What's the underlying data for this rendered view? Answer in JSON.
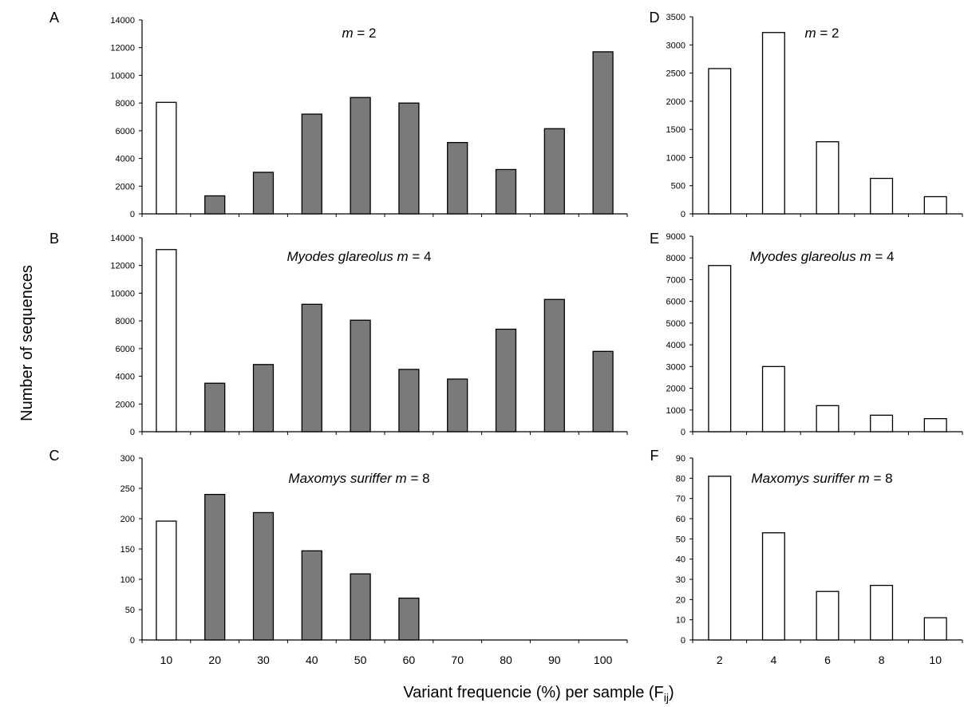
{
  "figure": {
    "ylabel": "Number of sequences",
    "xlabel_main": "Variant frequencie (%) per sample (F",
    "xlabel_sub": "ij",
    "xlabel_end": ")"
  },
  "colors": {
    "filled_bar": "#7a7a7a",
    "open_bar": "#ffffff",
    "stroke": "#000000"
  },
  "chart_data": [
    {
      "panel": "A",
      "type": "bar",
      "title_italic": "m",
      "title_rest": " = 2",
      "categories": [
        "10",
        "20",
        "30",
        "40",
        "50",
        "60",
        "70",
        "80",
        "90",
        "100"
      ],
      "values": [
        8050,
        1300,
        3000,
        7200,
        8400,
        8000,
        5150,
        3200,
        6150,
        11700
      ],
      "filled": [
        false,
        true,
        true,
        true,
        true,
        true,
        true,
        true,
        true,
        true
      ],
      "ylim": [
        0,
        14000
      ],
      "yticks": [
        0,
        2000,
        4000,
        6000,
        8000,
        10000,
        12000,
        14000
      ],
      "show_x_labels": false
    },
    {
      "panel": "B",
      "type": "bar",
      "title_italic": "Myodes glareolus m",
      "title_rest": " = 4",
      "categories": [
        "10",
        "20",
        "30",
        "40",
        "50",
        "60",
        "70",
        "80",
        "90",
        "100"
      ],
      "values": [
        13150,
        3500,
        4850,
        9200,
        8050,
        4500,
        3800,
        7400,
        9550,
        5800
      ],
      "filled": [
        false,
        true,
        true,
        true,
        true,
        true,
        true,
        true,
        true,
        true
      ],
      "ylim": [
        0,
        14000
      ],
      "yticks": [
        0,
        2000,
        4000,
        6000,
        8000,
        10000,
        12000,
        14000
      ],
      "show_x_labels": false
    },
    {
      "panel": "C",
      "type": "bar",
      "title_italic": "Maxomys suriffer m",
      "title_rest": " = 8",
      "categories": [
        "10",
        "20",
        "30",
        "40",
        "50",
        "60",
        "70",
        "80",
        "90",
        "100"
      ],
      "values": [
        196,
        240,
        210,
        147,
        109,
        69,
        0,
        0,
        0,
        0
      ],
      "filled": [
        false,
        true,
        true,
        true,
        true,
        true,
        true,
        true,
        true,
        true
      ],
      "ylim": [
        0,
        300
      ],
      "yticks": [
        0,
        50,
        100,
        150,
        200,
        250,
        300
      ],
      "show_x_labels": true
    },
    {
      "panel": "D",
      "type": "bar",
      "title_italic": "m",
      "title_rest": " = 2",
      "categories": [
        "2",
        "4",
        "6",
        "8",
        "10"
      ],
      "values": [
        2580,
        3220,
        1280,
        630,
        305
      ],
      "filled": [
        false,
        false,
        false,
        false,
        false
      ],
      "ylim": [
        0,
        3500
      ],
      "yticks": [
        0,
        500,
        1000,
        1500,
        2000,
        2500,
        3000,
        3500
      ],
      "show_x_labels": false
    },
    {
      "panel": "E",
      "type": "bar",
      "title_italic": "Myodes glareolus m",
      "title_rest": " = 4",
      "categories": [
        "2",
        "4",
        "6",
        "8",
        "10"
      ],
      "values": [
        7650,
        3000,
        1200,
        760,
        600
      ],
      "filled": [
        false,
        false,
        false,
        false,
        false
      ],
      "ylim": [
        0,
        9000
      ],
      "yticks": [
        0,
        1000,
        2000,
        3000,
        4000,
        5000,
        6000,
        7000,
        8000,
        9000
      ],
      "show_x_labels": false
    },
    {
      "panel": "F",
      "type": "bar",
      "title_italic": "Maxomys suriffer m",
      "title_rest": " = 8",
      "categories": [
        "2",
        "4",
        "6",
        "8",
        "10"
      ],
      "values": [
        81,
        53,
        24,
        27,
        11
      ],
      "filled": [
        false,
        false,
        false,
        false,
        false
      ],
      "ylim": [
        0,
        90
      ],
      "yticks": [
        0,
        10,
        20,
        30,
        40,
        50,
        60,
        70,
        80,
        90
      ],
      "show_x_labels": true
    }
  ]
}
